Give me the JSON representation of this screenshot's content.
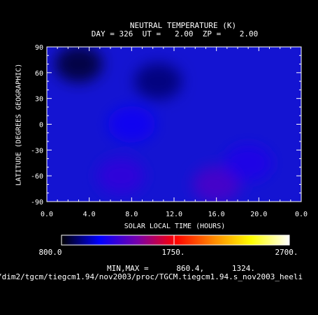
{
  "chart_data": {
    "type": "heatmap",
    "title": "NEUTRAL TEMPERATURE (K)",
    "subtitle": "DAY = 326  UT =   2.00  ZP =    2.00",
    "xlabel": "SOLAR LOCAL TIME (HOURS)",
    "ylabel": "LATITUDE (DEGREES GEOGRAPHIC)",
    "xlim": [
      0,
      24
    ],
    "ylim": [
      -90,
      90
    ],
    "xticks": [
      "0.0",
      "4.0",
      "8.0",
      "12.0",
      "16.0",
      "20.0",
      "0.0"
    ],
    "yticks": [
      "90",
      "60",
      "30",
      "0",
      "-30",
      "-60",
      "-90"
    ],
    "colorbar": {
      "min_label": "800.0",
      "mid_label": "1750.",
      "max_label": "2700.",
      "range": [
        800,
        2700
      ],
      "colors": [
        "#000000",
        "#0000ff",
        "#7700aa",
        "#ff0000",
        "#ff8800",
        "#ffff00",
        "#ffffff"
      ]
    },
    "minmax_text": "MIN,MAX =      860.4,      1324.",
    "data_range": [
      860.4,
      1324
    ],
    "features": [
      {
        "x": 3.0,
        "y": 70,
        "value": 860
      },
      {
        "x": 10.5,
        "y": 50,
        "value": 940
      },
      {
        "x": 7.0,
        "y": -60,
        "value": 1250
      },
      {
        "x": 16.0,
        "y": -70,
        "value": 1320
      },
      {
        "x": 8.0,
        "y": 0,
        "value": 1150
      },
      {
        "x": 19.0,
        "y": -45,
        "value": 1200
      }
    ],
    "source_path": "/dim2/tgcm/tiegcm1.94/nov2003/proc/TGCM.tiegcm1.94.s_nov2003_heeli"
  }
}
